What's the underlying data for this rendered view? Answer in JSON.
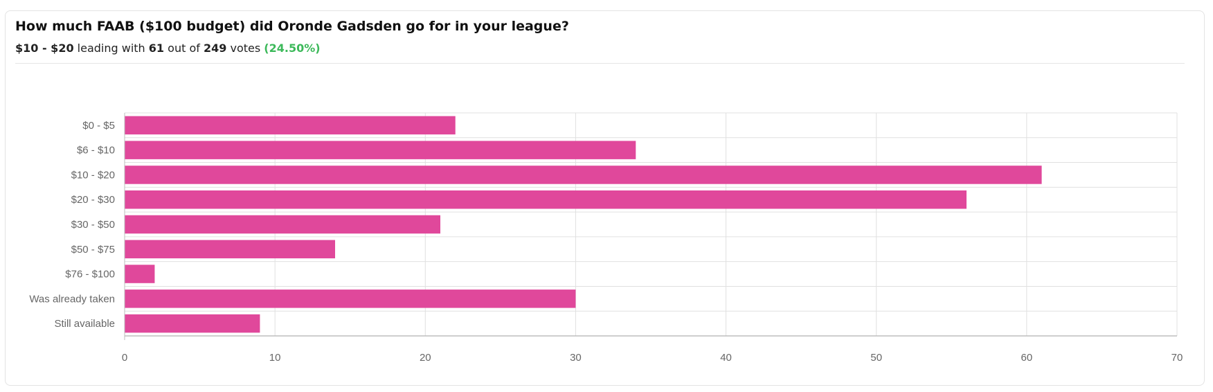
{
  "header": {
    "question": "How much FAAB ($100 budget) did Oronde Gadsden go for in your league?",
    "leader": "$10 - $20",
    "leading_with_text": "leading with",
    "leader_votes": "61",
    "out_of_text": "out of",
    "total_votes": "249",
    "votes_text": "votes",
    "percent": "(24.50%)"
  },
  "colors": {
    "bar": "#e0489b",
    "grid": "#e0e0e0",
    "axis": "#bdbdbd",
    "percent": "#3cb95a"
  },
  "chart_data": {
    "type": "bar",
    "orientation": "horizontal",
    "categories": [
      "$0 - $5",
      "$6 - $10",
      "$10 - $20",
      "$20 - $30",
      "$30 - $50",
      "$50 - $75",
      "$76 - $100",
      "Was already taken",
      "Still available"
    ],
    "values": [
      22,
      34,
      61,
      56,
      21,
      14,
      2,
      30,
      9
    ],
    "xlim": [
      0,
      70
    ],
    "xticks": [
      0,
      10,
      20,
      30,
      40,
      50,
      60,
      70
    ],
    "grid": true,
    "legend": "none",
    "title": "How much FAAB ($100 budget) did Oronde Gadsden go for in your league?"
  }
}
